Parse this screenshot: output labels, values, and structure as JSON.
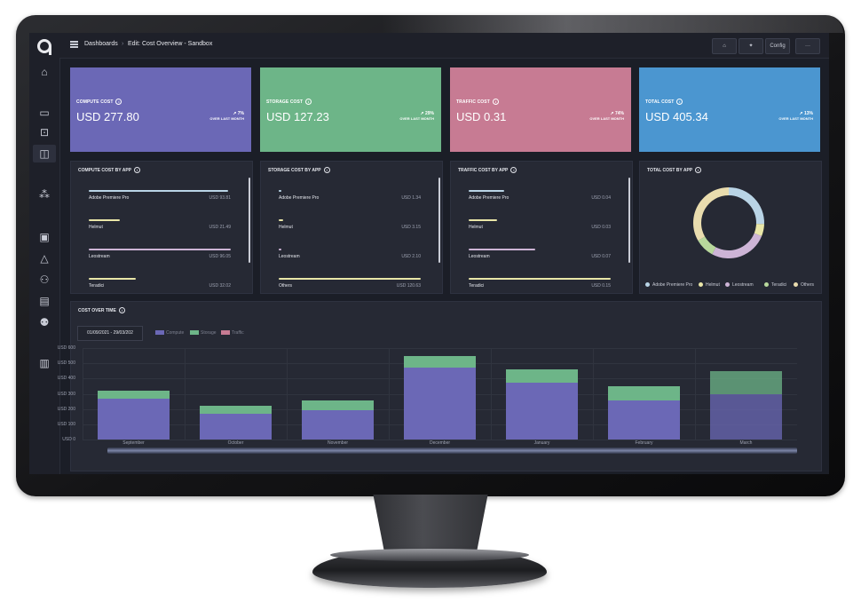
{
  "breadcrumb": {
    "root": "Dashboards",
    "separator": "›",
    "current": "Edit: Cost Overview - Sandbox"
  },
  "toolbar": {
    "config_label": "Config",
    "more_label": "···",
    "home_icon": "⌂",
    "pin_icon": "✦"
  },
  "stats": [
    {
      "label": "COMPUTE COST",
      "value": "USD 277.80",
      "delta": "↗ 7%",
      "delta_note": "OVER LAST MONTH",
      "color": "#6b68b6"
    },
    {
      "label": "STORAGE COST",
      "value": "USD 127.23",
      "delta": "↗ 29%",
      "delta_note": "OVER LAST MONTH",
      "color": "#6db588"
    },
    {
      "label": "TRAFFIC COST",
      "value": "USD 0.31",
      "delta": "↗ 74%",
      "delta_note": "OVER LAST MONTH",
      "color": "#c77b93"
    },
    {
      "label": "TOTAL COST",
      "value": "USD 405.34",
      "delta": "↗ 13%",
      "delta_note": "OVER LAST MONTH",
      "color": "#4b96d0"
    }
  ],
  "compute_by_app": {
    "title": "COMPUTE COST BY APP",
    "rows": [
      {
        "name": "Adobe Premiere Pro",
        "value": "USD 93.81",
        "pct": 0.98,
        "color": "#b9d4e6"
      },
      {
        "name": "Helmut",
        "value": "USD 21.49",
        "pct": 0.22,
        "color": "#e9e6a8"
      },
      {
        "name": "Leostream",
        "value": "USD 96.05",
        "pct": 1.0,
        "color": "#cdb4d6"
      },
      {
        "name": "Teradici",
        "value": "USD 32.02",
        "pct": 0.33,
        "color": "#e9e6a8"
      }
    ]
  },
  "storage_by_app": {
    "title": "STORAGE COST BY APP",
    "rows": [
      {
        "name": "Adobe Premiere Pro",
        "value": "USD 1.34",
        "pct": 0.02,
        "color": "#b9d4e6"
      },
      {
        "name": "Helmut",
        "value": "USD 3.15",
        "pct": 0.03,
        "color": "#e9e6a8"
      },
      {
        "name": "Leostream",
        "value": "USD 2.10",
        "pct": 0.02,
        "color": "#cdb4d6"
      },
      {
        "name": "Others",
        "value": "USD 120.63",
        "pct": 1.0,
        "color": "#e9e6a8"
      }
    ]
  },
  "traffic_by_app": {
    "title": "TRAFFIC COST BY APP",
    "rows": [
      {
        "name": "Adobe Premiere Pro",
        "value": "USD 0.04",
        "pct": 0.25,
        "color": "#b9d4e6"
      },
      {
        "name": "Helmut",
        "value": "USD 0.03",
        "pct": 0.2,
        "color": "#e9e6a8"
      },
      {
        "name": "Leostream",
        "value": "USD 0.07",
        "pct": 0.47,
        "color": "#cdb4d6"
      },
      {
        "name": "Teradici",
        "value": "USD 0.15",
        "pct": 1.0,
        "color": "#e9e6a8"
      }
    ]
  },
  "total_by_app": {
    "title": "TOTAL COST BY APP",
    "legend": [
      {
        "name": "Adobe Premiere Pro",
        "color": "#b9d4e6"
      },
      {
        "name": "Helmut",
        "color": "#e9e6a8"
      },
      {
        "name": "Leostream",
        "color": "#cdb4d6"
      },
      {
        "name": "Teradici",
        "color": "#b8d89c"
      },
      {
        "name": "Others",
        "color": "#e9dcae"
      }
    ],
    "slices": [
      0.23,
      0.05,
      0.24,
      0.08,
      0.3
    ]
  },
  "cost_over_time": {
    "title": "COST OVER TIME",
    "date_range": "01/09/2021 - 29/03/202",
    "legend": [
      {
        "name": "Compute",
        "color": "#6b68b6"
      },
      {
        "name": "Storage",
        "color": "#6db588"
      },
      {
        "name": "Traffic",
        "color": "#c77b93"
      }
    ]
  },
  "chart_data": {
    "type": "bar",
    "stacked": true,
    "categories": [
      "September",
      "October",
      "November",
      "December",
      "January",
      "February",
      "March"
    ],
    "series": [
      {
        "name": "Compute",
        "color": "#6b68b6",
        "values": [
          268,
          168,
          190,
          470,
          375,
          255,
          300
        ]
      },
      {
        "name": "Storage",
        "color": "#6db588",
        "values": [
          55,
          55,
          65,
          75,
          85,
          95,
          150
        ]
      },
      {
        "name": "Traffic",
        "color": "#c77b93",
        "values": [
          0,
          0,
          0,
          0,
          0,
          0,
          0
        ]
      }
    ],
    "yticks": [
      "USD 600",
      "USD 500",
      "USD 400",
      "USD 300",
      "USD 200",
      "USD 100",
      "USD 0"
    ],
    "ylim": [
      0,
      600
    ],
    "grid": true
  },
  "sidebar_icons": [
    "home-icon",
    "window-icon",
    "frame-icon",
    "layout-icon",
    "nodes-icon",
    "clipboard-icon",
    "network-icon",
    "users-icon",
    "document-icon",
    "user-settings-icon",
    "archive-icon"
  ]
}
